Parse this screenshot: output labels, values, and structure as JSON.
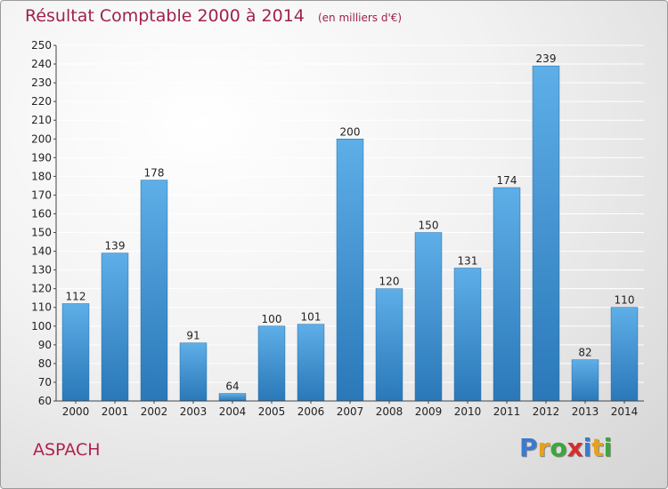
{
  "title": "Résultat Comptable 2000 à 2014",
  "unit_note": "(en milliers d'€)",
  "location": "ASPACH",
  "logo": {
    "text": "Proxiti",
    "letters": [
      "P",
      "r",
      "o",
      "x",
      "i",
      "t",
      "i"
    ],
    "colors": [
      "#3a7ad1",
      "#e8a020",
      "#3aa83a",
      "#d82c2c",
      "#3a7ad1",
      "#e8a020",
      "#3aa83a"
    ]
  },
  "colors": {
    "title": "#a0224a",
    "bar_light": "#5eaee8",
    "bar_dark": "#2a78b8",
    "grid": "#ffffff"
  },
  "chart_data": {
    "type": "bar",
    "title": "Résultat Comptable 2000 à 2014",
    "subtitle": "(en milliers d'€)",
    "categories": [
      "2000",
      "2001",
      "2002",
      "2003",
      "2004",
      "2005",
      "2006",
      "2007",
      "2008",
      "2009",
      "2010",
      "2011",
      "2012",
      "2013",
      "2014"
    ],
    "values": [
      112,
      139,
      178,
      91,
      64,
      100,
      101,
      200,
      120,
      150,
      131,
      174,
      239,
      82,
      110
    ],
    "ylim": [
      60,
      250
    ],
    "ytick_step": 10,
    "grid": true,
    "xlabel": "",
    "ylabel": ""
  }
}
